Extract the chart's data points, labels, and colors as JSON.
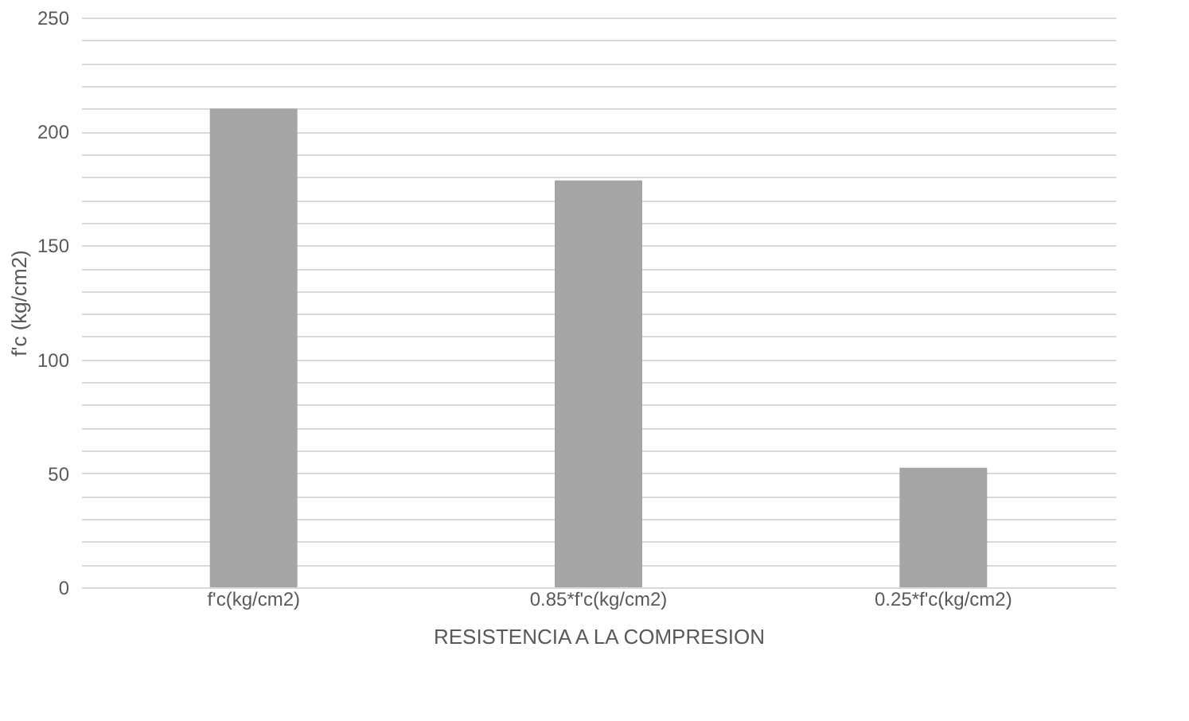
{
  "chart_data": {
    "type": "bar",
    "xlabel": "RESISTENCIA A LA COMPRESION",
    "ylabel": "f'c (kg/cm2)",
    "categories": [
      "f'c(kg/cm2)",
      "0.85*f'c(kg/cm2)",
      "0.25*f'c(kg/cm2)"
    ],
    "values": [
      210,
      178.5,
      52.5
    ],
    "color": "#a5a5a5",
    "ylim": [
      0,
      250
    ],
    "yticks": [
      0,
      {
        "value": 10,
        "label": null
      },
      {
        "value": 20,
        "label": null
      },
      {
        "value": 30,
        "label": null
      },
      {
        "value": 40,
        "label": null
      },
      50,
      {
        "value": 60,
        "label": null
      },
      {
        "value": 70,
        "label": null
      },
      {
        "value": 80,
        "label": null
      },
      {
        "value": 90,
        "label": null
      },
      100,
      {
        "value": 110,
        "label": null
      },
      {
        "value": 120,
        "label": null
      },
      {
        "value": 130,
        "label": null
      },
      {
        "value": 140,
        "label": null
      },
      150,
      {
        "value": 160,
        "label": null
      },
      {
        "value": 170,
        "label": null
      },
      {
        "value": 180,
        "label": null
      },
      {
        "value": 190,
        "label": null
      },
      200,
      {
        "value": 210,
        "label": null
      },
      {
        "value": 220,
        "label": null
      },
      {
        "value": 230,
        "label": null
      },
      {
        "value": 240,
        "label": null
      },
      250
    ],
    "grid": "y"
  }
}
